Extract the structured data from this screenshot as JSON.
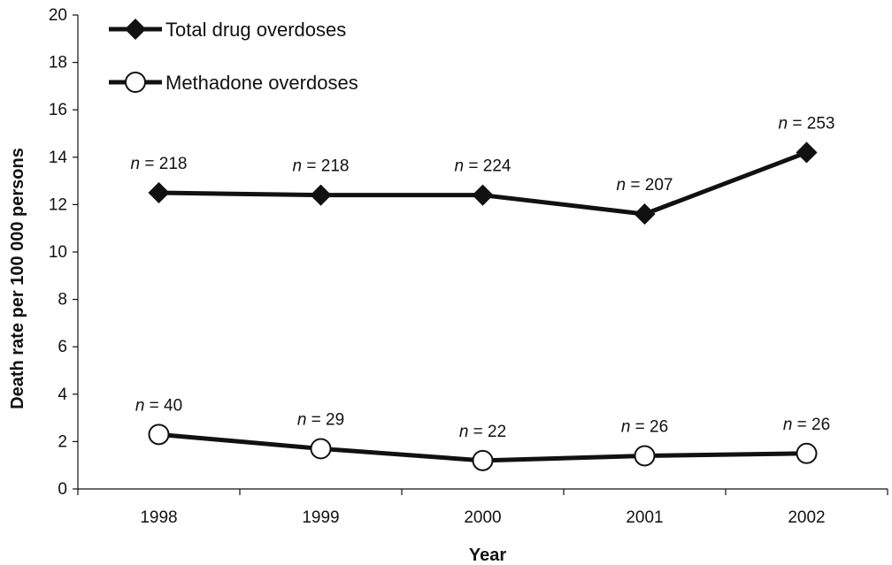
{
  "chart_data": {
    "type": "line",
    "title": "",
    "xlabel": "Year",
    "ylabel": "Death rate per 100 000 persons",
    "ylim": [
      0,
      20
    ],
    "yticks": [
      "0",
      "2",
      "4",
      "6",
      "8",
      "10",
      "12",
      "14",
      "16",
      "18",
      "20"
    ],
    "categories": [
      "1998",
      "1999",
      "2000",
      "2001",
      "2002"
    ],
    "grid": false,
    "legend_position": "top-left",
    "series": [
      {
        "name": "Total drug overdoses",
        "marker": "diamond",
        "values": [
          12.5,
          12.4,
          12.4,
          11.6,
          14.2
        ],
        "labels": [
          "218",
          "218",
          "224",
          "207",
          "253"
        ]
      },
      {
        "name": "Methadone overdoses",
        "marker": "circle",
        "values": [
          2.3,
          1.7,
          1.2,
          1.4,
          1.5
        ],
        "labels": [
          "40",
          "29",
          "22",
          "26",
          "26"
        ]
      }
    ],
    "label_prefix": "n",
    "label_separator": " = ",
    "colors": {
      "line": "#111111",
      "marker_fill_open": "#ffffff",
      "marker_fill_solid": "#111111"
    }
  }
}
